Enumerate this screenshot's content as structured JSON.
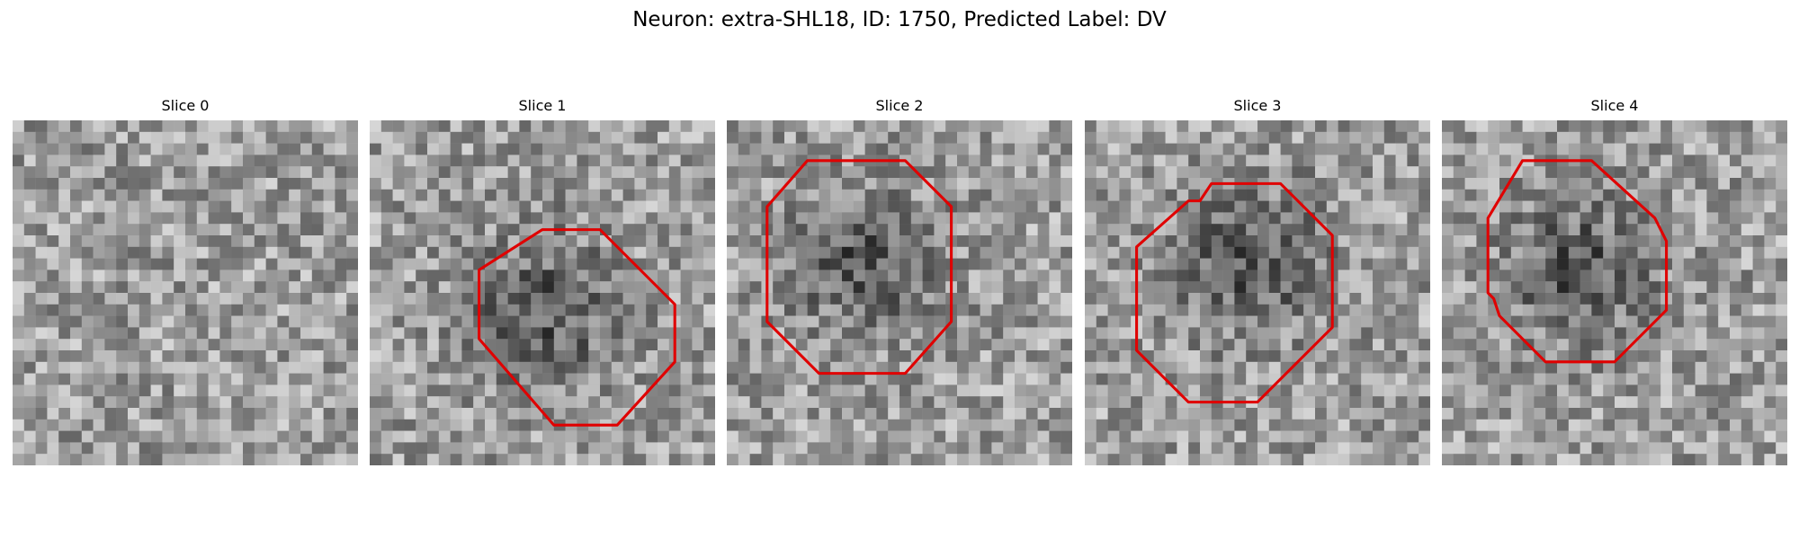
{
  "figure": {
    "title": "Neuron: extra-SHL18, ID: 1750, Predicted Label: DV",
    "contour_color": "#e00000"
  },
  "slices": [
    {
      "title": "Slice 0",
      "dark_center": null,
      "contour": []
    },
    {
      "title": "Slice 1",
      "dark_center": [
        0.5,
        0.56
      ],
      "contour": [
        [
          15.0,
          9.5
        ],
        [
          20.0,
          9.5
        ],
        [
          26.5,
          16.0
        ],
        [
          26.5,
          21.0
        ],
        [
          21.5,
          26.5
        ],
        [
          16.0,
          26.5
        ],
        [
          9.5,
          19.0
        ],
        [
          9.5,
          13.0
        ]
      ]
    },
    {
      "title": "Slice 2",
      "dark_center": [
        0.4,
        0.41
      ],
      "contour": [
        [
          7.0,
          3.5
        ],
        [
          15.5,
          3.5
        ],
        [
          19.5,
          7.5
        ],
        [
          19.5,
          17.5
        ],
        [
          15.5,
          22.0
        ],
        [
          8.0,
          22.0
        ],
        [
          3.5,
          17.5
        ],
        [
          3.5,
          7.5
        ]
      ]
    },
    {
      "title": "Slice 3",
      "dark_center": [
        0.48,
        0.41
      ],
      "contour": [
        [
          11.0,
          5.5
        ],
        [
          17.0,
          5.5
        ],
        [
          21.5,
          10.0
        ],
        [
          21.5,
          18.0
        ],
        [
          15.0,
          24.5
        ],
        [
          9.0,
          24.5
        ],
        [
          4.5,
          20.0
        ],
        [
          4.5,
          11.0
        ],
        [
          9.0,
          7.0
        ],
        [
          10.0,
          7.0
        ]
      ]
    },
    {
      "title": "Slice 4",
      "dark_center": [
        0.4,
        0.44
      ],
      "contour": [
        [
          7.0,
          3.5
        ],
        [
          13.0,
          3.5
        ],
        [
          18.5,
          8.5
        ],
        [
          19.5,
          10.5
        ],
        [
          19.5,
          16.5
        ],
        [
          15.0,
          21.0
        ],
        [
          9.0,
          21.0
        ],
        [
          5.0,
          17.0
        ],
        [
          4.5,
          15.5
        ],
        [
          4.0,
          15.0
        ],
        [
          4.0,
          8.5
        ]
      ]
    }
  ]
}
